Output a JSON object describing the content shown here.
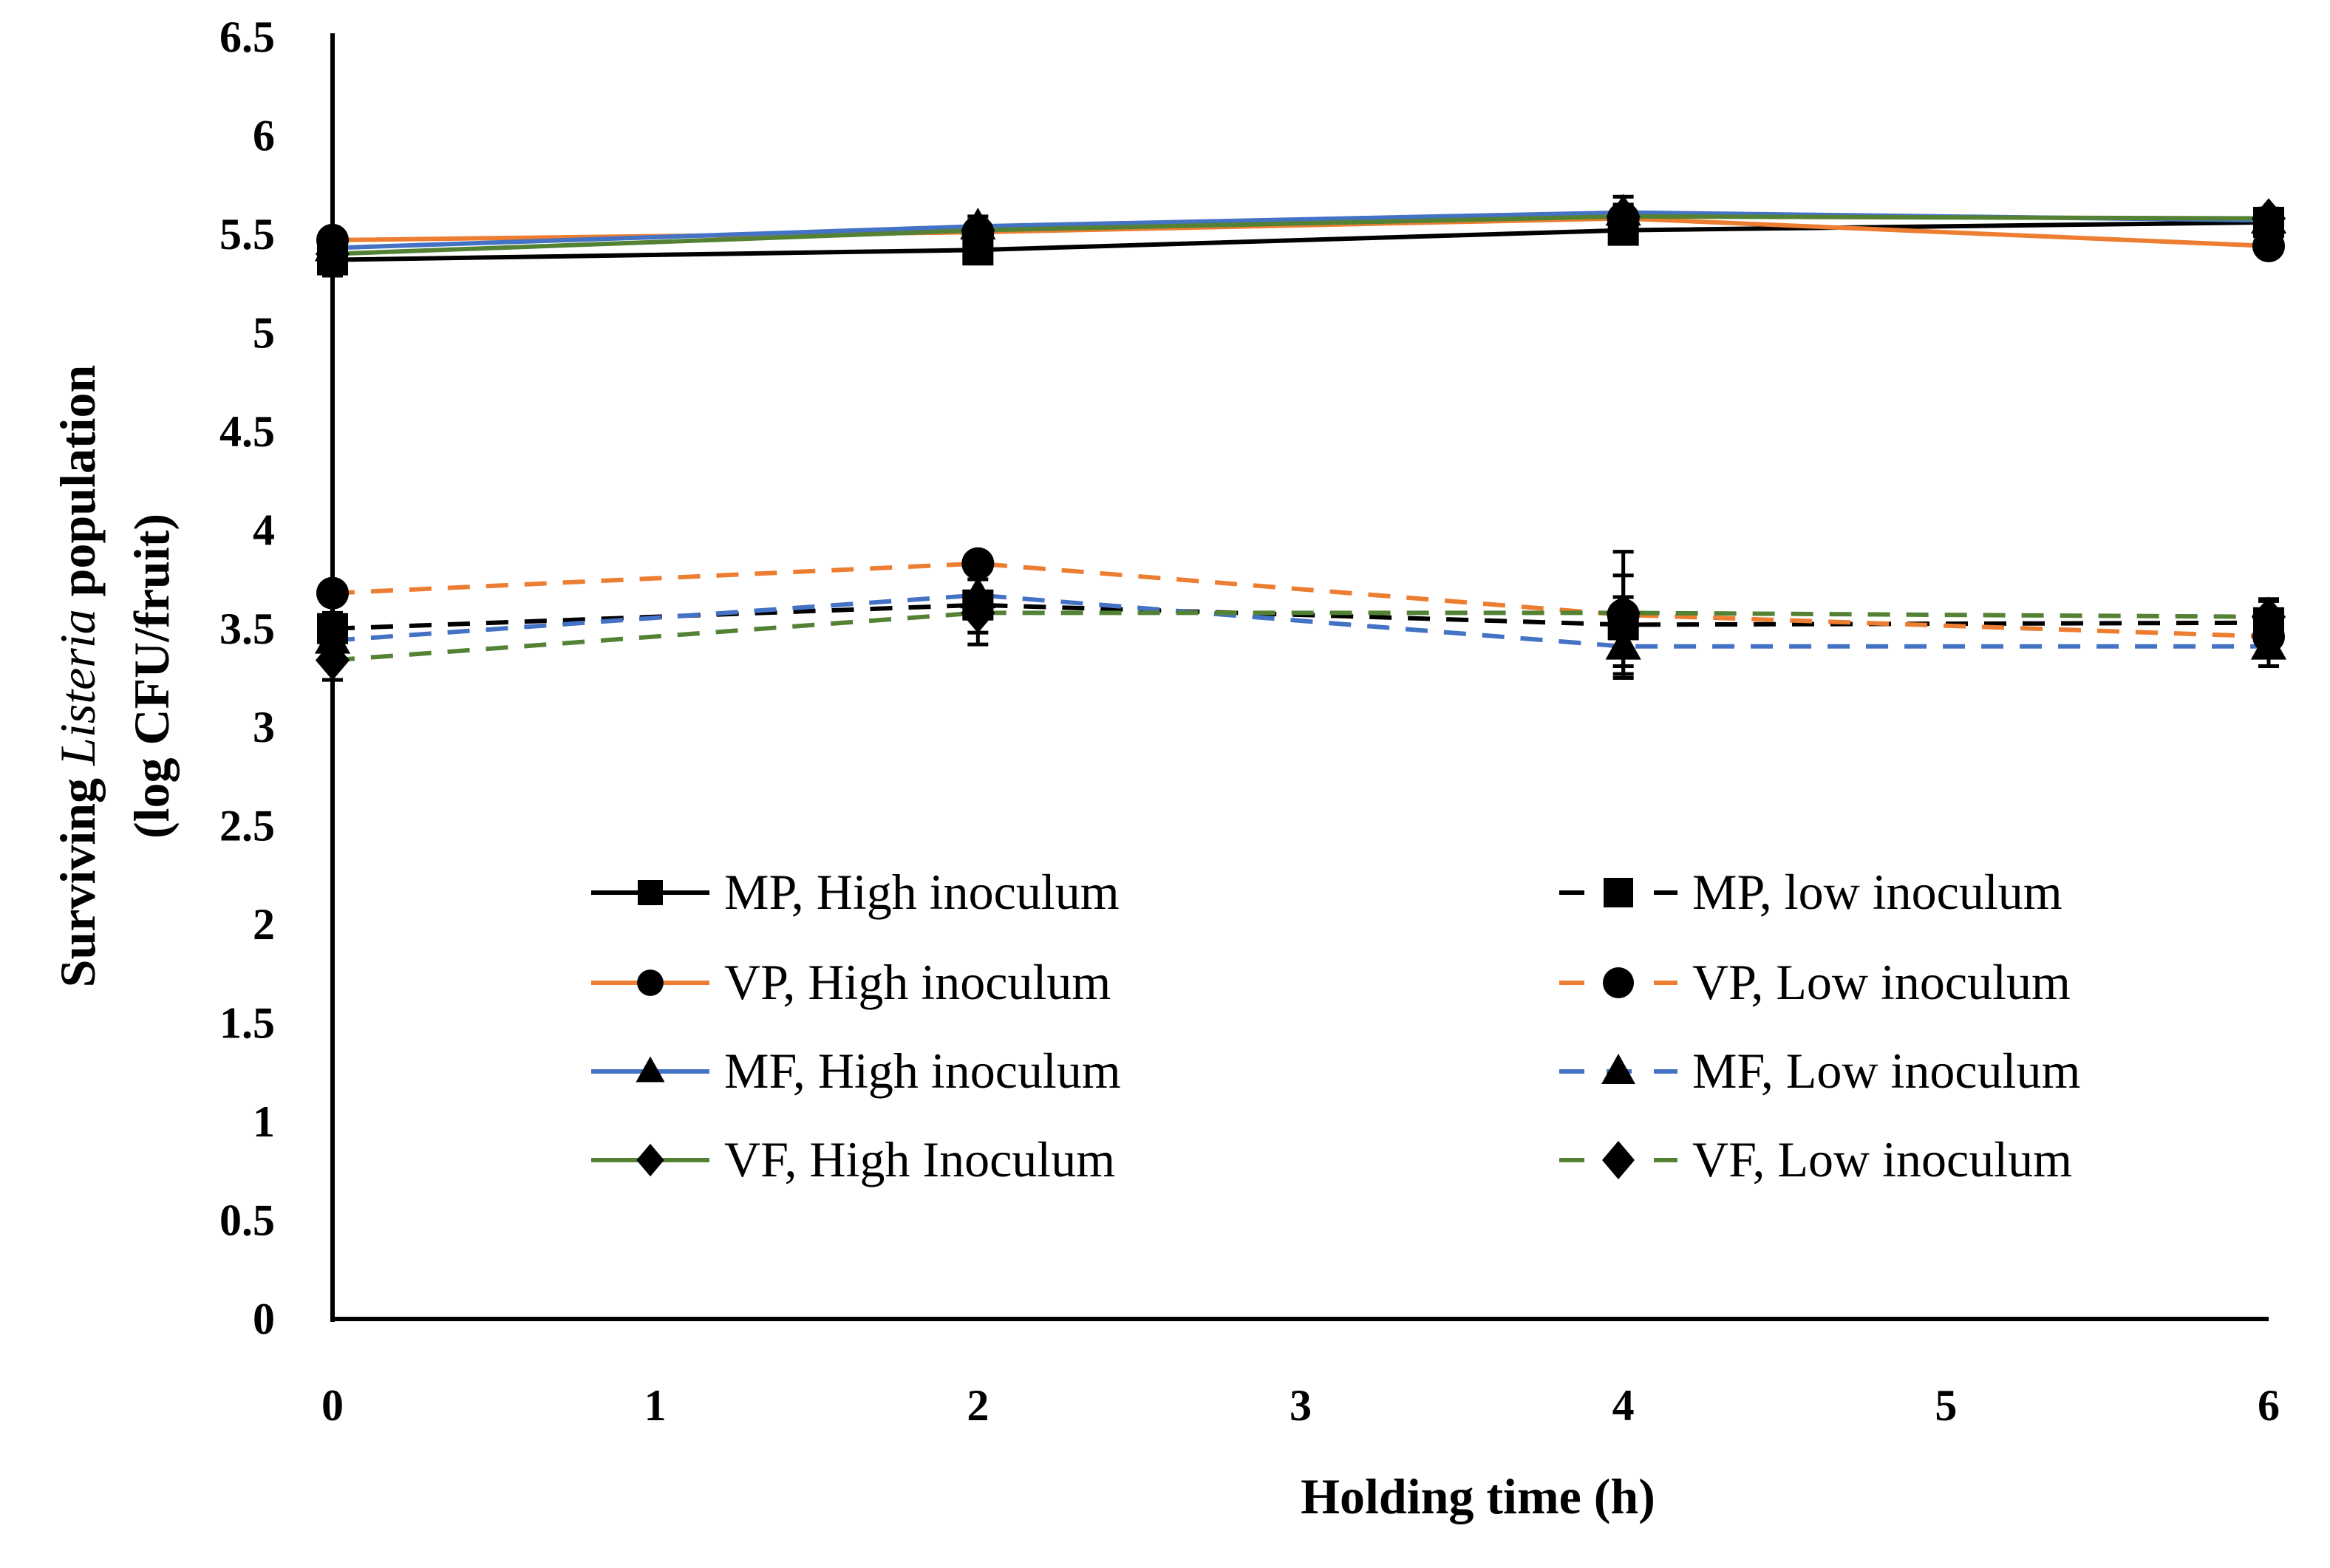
{
  "chart_data": {
    "type": "line",
    "xlabel": "Holding time (h)",
    "ylabel": {
      "line1_parts": [
        "Surviving ",
        "Listeria",
        " population"
      ],
      "line2": "(log CFU/fruit)"
    },
    "xlim": [
      0,
      6
    ],
    "ylim": [
      0,
      6.5
    ],
    "x_ticks": [
      "0",
      "1",
      "2",
      "3",
      "4",
      "5",
      "6"
    ],
    "y_ticks": [
      "0",
      "0.5",
      "1",
      "1.5",
      "2",
      "2.5",
      "3",
      "3.5",
      "4",
      "4.5",
      "5",
      "5.5",
      "6",
      "6.5"
    ],
    "grid": false,
    "legend_position": "lower-center, two columns",
    "series": [
      {
        "name": "MP, High inoculum",
        "color": "#000000",
        "dash": "solid",
        "marker": "square",
        "x": [
          0,
          2,
          4,
          6
        ],
        "y": [
          5.37,
          5.42,
          5.52,
          5.56
        ],
        "err": [
          0.08,
          0.06,
          0.06,
          0.06
        ]
      },
      {
        "name": "VP, High inoculum",
        "color": "#ED7D31",
        "dash": "solid",
        "marker": "circle",
        "x": [
          0,
          2,
          4,
          6
        ],
        "y": [
          5.47,
          5.51,
          5.58,
          5.44
        ],
        "err": [
          0.05,
          0.04,
          0.06,
          0.03
        ]
      },
      {
        "name": "MF, High inoculum",
        "color": "#4472C4",
        "dash": "solid",
        "marker": "triangle",
        "x": [
          0,
          2,
          4,
          6
        ],
        "y": [
          5.43,
          5.54,
          5.61,
          5.57
        ],
        "err": [
          0.05,
          0.05,
          0.08,
          0.05
        ]
      },
      {
        "name": "VF, High Inoculum",
        "color": "#548235",
        "dash": "solid",
        "marker": "diamond",
        "x": [
          0,
          2,
          4,
          6
        ],
        "y": [
          5.4,
          5.52,
          5.59,
          5.58
        ],
        "err": [
          0.05,
          0.05,
          0.06,
          0.05
        ]
      },
      {
        "name": "MP, low inoculum",
        "color": "#000000",
        "dash": "dashed",
        "marker": "square",
        "x": [
          0,
          2,
          4,
          6
        ],
        "y": [
          3.5,
          3.62,
          3.52,
          3.53
        ],
        "err": [
          0.08,
          0.2,
          0.25,
          0.12
        ]
      },
      {
        "name": "VP, Low inoculum",
        "color": "#ED7D31",
        "dash": "dashed",
        "marker": "circle",
        "x": [
          0,
          2,
          4,
          6
        ],
        "y": [
          3.68,
          3.83,
          3.57,
          3.46
        ],
        "err": [
          0.05,
          0.05,
          0.32,
          0.1
        ]
      },
      {
        "name": "MF, Low inoculum",
        "color": "#4472C4",
        "dash": "dashed",
        "marker": "triangle",
        "x": [
          0,
          2,
          4,
          6
        ],
        "y": [
          3.44,
          3.67,
          3.41,
          3.41
        ],
        "err": [
          0.05,
          0.08,
          0.1,
          0.1
        ]
      },
      {
        "name": "VF, Low inoculum",
        "color": "#548235",
        "dash": "dashed",
        "marker": "diamond",
        "x": [
          0,
          2,
          4,
          6
        ],
        "y": [
          3.34,
          3.58,
          3.58,
          3.56
        ],
        "err": [
          0.1,
          0.1,
          0.08,
          0.08
        ]
      }
    ]
  }
}
